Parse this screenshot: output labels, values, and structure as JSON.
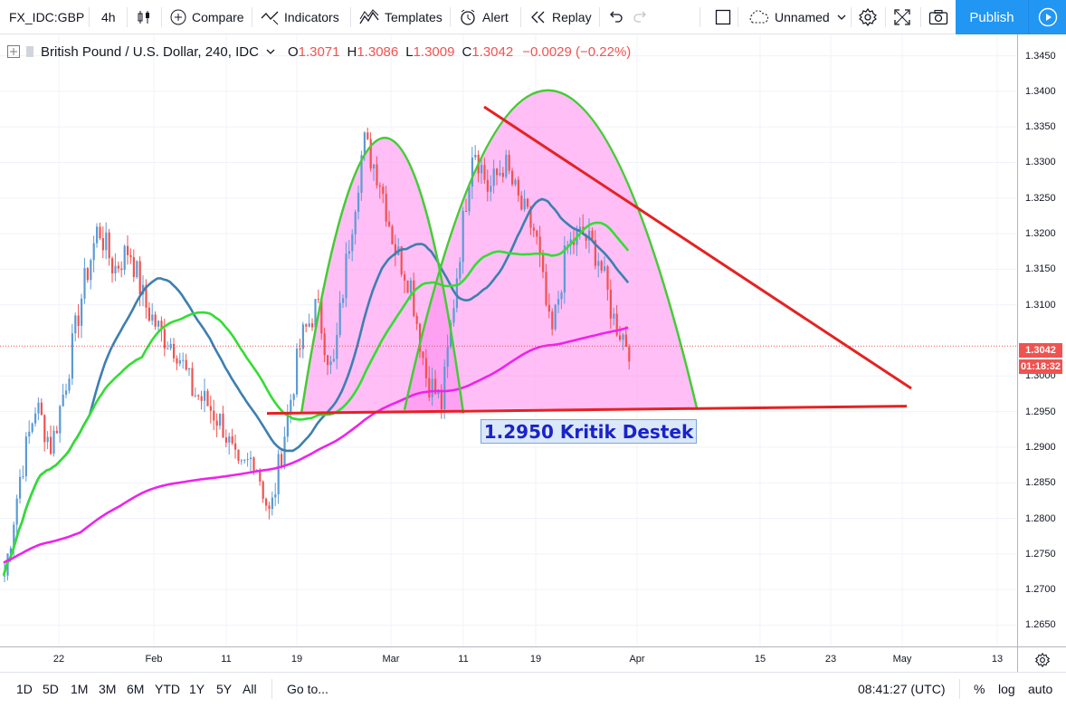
{
  "toolbar": {
    "symbol": "FX_IDC:GBP",
    "interval": "4h",
    "compare": "Compare",
    "indicators": "Indicators",
    "templates": "Templates",
    "alert": "Alert",
    "replay": "Replay",
    "layout_name": "Unnamed",
    "publish": "Publish"
  },
  "legend": {
    "title": "British Pound / U.S. Dollar, 240, IDC",
    "o_label": "O",
    "o_value": "1.3071",
    "h_label": "H",
    "h_value": "1.3086",
    "l_label": "L",
    "l_value": "1.3009",
    "c_label": "C",
    "c_value": "1.3042",
    "change": "−0.0029 (−0.22%)"
  },
  "price_axis": {
    "ticks": [
      "1.3450",
      "1.3400",
      "1.3350",
      "1.3300",
      "1.3250",
      "1.3200",
      "1.3150",
      "1.3100",
      "1.3000",
      "1.2950",
      "1.2900",
      "1.2850",
      "1.2800",
      "1.2750",
      "1.2700",
      "1.2650"
    ],
    "current_price": "1.3042",
    "countdown": "01:18:32"
  },
  "time_axis": {
    "ticks": [
      "22",
      "Feb",
      "11",
      "19",
      "Mar",
      "11",
      "19",
      "Apr",
      "15",
      "23",
      "May",
      "13"
    ]
  },
  "annotation": {
    "label": "1.2950 Kritik Destek"
  },
  "bottom": {
    "ranges": [
      "1D",
      "5D",
      "1M",
      "3M",
      "6M",
      "YTD",
      "1Y",
      "5Y",
      "All"
    ],
    "goto": "Go to...",
    "clock": "08:41:27 (UTC)",
    "percent": "%",
    "log": "log",
    "auto": "auto"
  },
  "colors": {
    "up": "#5b9bd5",
    "down": "#ef5350",
    "ma_blue": "#3d7fb0",
    "ma_green": "#33dd33",
    "ma_magenta": "#ee22ee",
    "arc": "#44cc33",
    "arc_fill": "#ff88ee",
    "trendline": "#e52222",
    "accent": "#2196f3"
  },
  "chart_data": {
    "type": "candlestick",
    "symbol": "GBPUSD",
    "ylim": [
      1.262,
      1.348
    ],
    "x_ticks": [
      "22",
      "Feb",
      "11",
      "19",
      "Mar",
      "11",
      "19",
      "Apr",
      "15",
      "23",
      "May",
      "13"
    ],
    "y_ticks": [
      1.345,
      1.34,
      1.335,
      1.33,
      1.325,
      1.32,
      1.315,
      1.31,
      1.3,
      1.295,
      1.29,
      1.285,
      1.28,
      1.275,
      1.27,
      1.265
    ],
    "price_path": [
      1.272,
      1.286,
      1.296,
      1.29,
      1.3,
      1.312,
      1.321,
      1.315,
      1.318,
      1.31,
      1.306,
      1.304,
      1.298,
      1.296,
      1.293,
      1.286,
      1.289,
      1.28,
      1.293,
      1.305,
      1.31,
      1.3,
      1.318,
      1.333,
      1.328,
      1.318,
      1.313,
      1.3,
      1.296,
      1.315,
      1.333,
      1.326,
      1.33,
      1.324,
      1.32,
      1.305,
      1.318,
      1.32,
      1.317,
      1.308,
      1.3042
    ],
    "support_level": 1.295,
    "last_close": 1.3042
  }
}
